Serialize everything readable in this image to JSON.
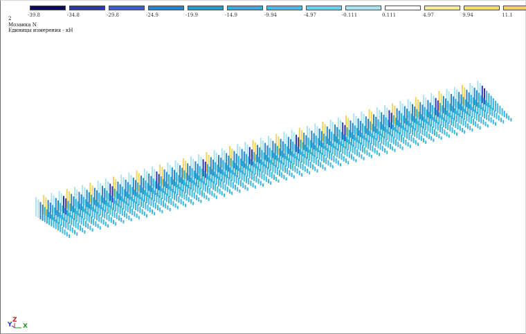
{
  "legend": {
    "colors": [
      "#0b0b55",
      "#2d35b0",
      "#3f5cc8",
      "#2c83c6",
      "#3096c8",
      "#33aed6",
      "#42bfe0",
      "#6dd0ea",
      "#a9e3f0",
      "#ffffff",
      "#f4eb9a",
      "#efdd6f",
      "#f0d45a"
    ],
    "ticks": [
      "-39.8",
      "-34.8",
      "-29.8",
      "-24.9",
      "-19.9",
      "-14.9",
      "-9.94",
      "-4.97",
      "-0.111",
      "0.111",
      "4.97",
      "9.94",
      "11.1"
    ]
  },
  "info": {
    "line1": "2",
    "line2": "Мозаика N",
    "line3": "Единицы измерения - кН"
  },
  "axes": {
    "y": "Y",
    "z": "Z",
    "x": "X"
  },
  "plot": {
    "icon": "mosaic-bars-3d",
    "colors": [
      "#3fb6dc",
      "#33aed6",
      "#2c83c6",
      "#2d35b0",
      "#f0d45a",
      "#a9e3f0"
    ]
  }
}
